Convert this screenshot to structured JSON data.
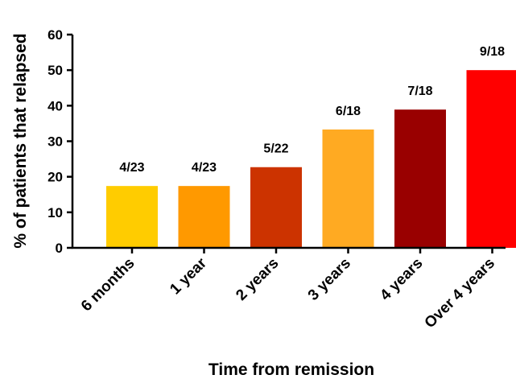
{
  "chart_data": {
    "type": "bar",
    "title": "",
    "xlabel": "Time from remission",
    "ylabel": "% of patients that relapsed",
    "ylim": [
      0,
      60
    ],
    "yticks": [
      0,
      10,
      20,
      30,
      40,
      50,
      60
    ],
    "grid": false,
    "categories": [
      "6 months",
      "1 year",
      "2 years",
      "3 years",
      "4 years",
      "Over 4 years"
    ],
    "values": [
      17.4,
      17.4,
      22.7,
      33.3,
      38.9,
      50.0
    ],
    "data_labels": [
      "4/23",
      "4/23",
      "5/22",
      "6/18",
      "7/18",
      "9/18"
    ],
    "colors": [
      "#FFCC00",
      "#FF9900",
      "#CC3300",
      "#FFAA22",
      "#990000",
      "#FF0000"
    ]
  }
}
